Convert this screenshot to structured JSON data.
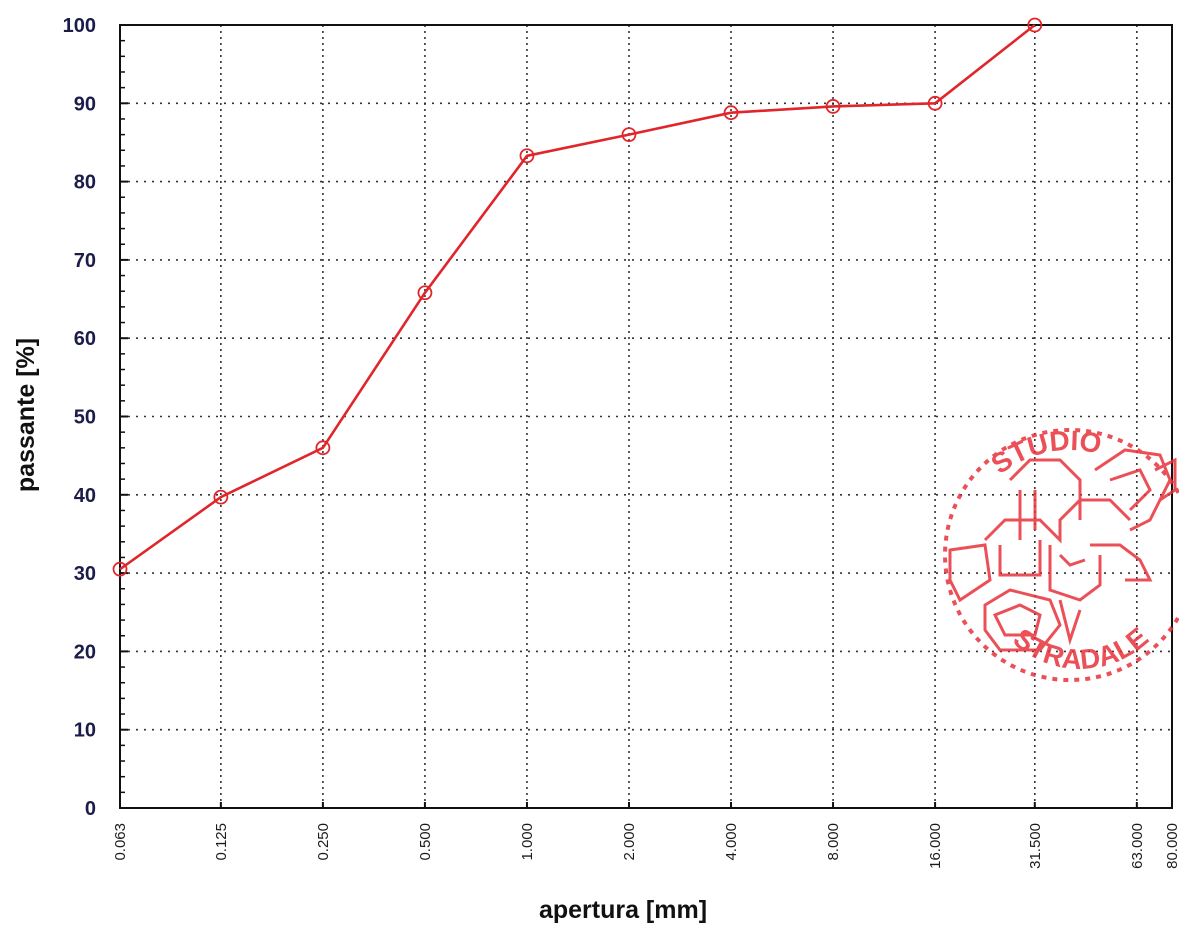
{
  "chart_data": {
    "type": "line",
    "xlabel": "apertura [mm]",
    "ylabel": "passante [%]",
    "x_scale": "log",
    "x_tick_labels": [
      "0.063",
      "0.125",
      "0.250",
      "0.500",
      "1.000",
      "2.000",
      "4.000",
      "8.000",
      "16.000",
      "31.500",
      "63.000",
      "80.000"
    ],
    "xlim": [
      0.063,
      80.0
    ],
    "ylim": [
      0,
      100
    ],
    "y_ticks": [
      0,
      10,
      20,
      30,
      40,
      50,
      60,
      70,
      80,
      90,
      100
    ],
    "grid": true,
    "legend": "none",
    "series": [
      {
        "color": "#e0262b",
        "marker": "open-circle",
        "x": [
          0.063,
          0.125,
          0.25,
          0.5,
          1.0,
          2.0,
          4.0,
          8.0,
          16.0,
          31.5
        ],
        "y": [
          30.5,
          39.7,
          46.0,
          65.8,
          83.3,
          86.0,
          88.8,
          89.6,
          90.0,
          100.0
        ]
      }
    ]
  },
  "stamp": {
    "top_text": "STUDIO",
    "bottom_text": "STRADALE",
    "color": "#e8323c"
  }
}
